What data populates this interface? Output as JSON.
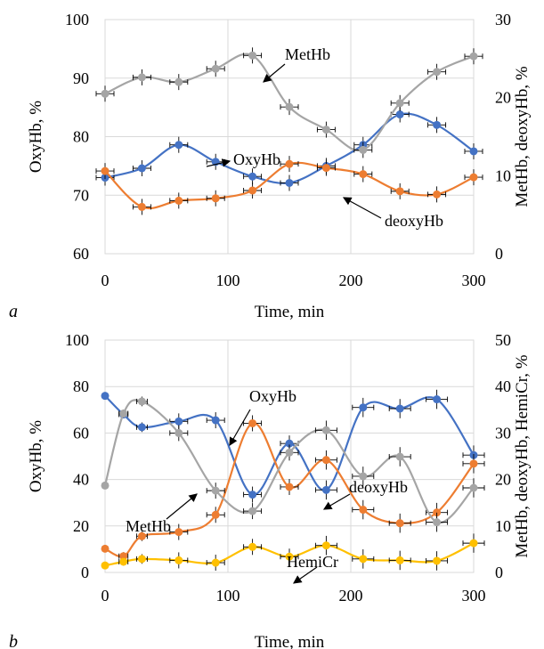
{
  "chart_data": [
    {
      "panel_label": "a",
      "type": "scatter",
      "xlabel": "Time, min",
      "ylabel": "OxyHb,  %",
      "y2label": "MetHb, deoxyHb,  %",
      "xlim": [
        0,
        300
      ],
      "ylim": [
        60,
        100
      ],
      "y2lim": [
        0,
        30
      ],
      "x_ticks": [
        "0",
        "100",
        "200",
        "300"
      ],
      "y_ticks": [
        "60",
        "70",
        "80",
        "90",
        "100"
      ],
      "y2_ticks": [
        "0",
        "10",
        "20",
        "30"
      ],
      "grid": true,
      "series": [
        {
          "name": "OxyHb",
          "axis": "left",
          "color": "#4472C4",
          "x": [
            0,
            30,
            60,
            90,
            120,
            150,
            180,
            210,
            240,
            270,
            300
          ],
          "y": [
            73.0,
            74.6,
            78.6,
            75.7,
            73.2,
            72.1,
            75.0,
            78.6,
            83.8,
            82.0,
            77.5
          ],
          "annotation": "OxyHb"
        },
        {
          "name": "deoxyHb",
          "axis": "right",
          "color": "#ED7D31",
          "x": [
            0,
            30,
            60,
            90,
            120,
            150,
            180,
            210,
            240,
            270,
            300
          ],
          "y": [
            10.6,
            6.0,
            6.8,
            7.1,
            8.1,
            11.5,
            11.0,
            10.2,
            8.0,
            7.6,
            9.8
          ],
          "annotation": "deoxyHb"
        },
        {
          "name": "MetHb",
          "axis": "right",
          "color": "#A5A5A5",
          "x": [
            0,
            30,
            60,
            90,
            120,
            150,
            180,
            210,
            240,
            270,
            300
          ],
          "y": [
            20.5,
            22.6,
            22.0,
            23.7,
            25.4,
            18.8,
            15.9,
            13.3,
            19.3,
            23.3,
            25.3
          ],
          "annotation": "MetHb"
        }
      ]
    },
    {
      "panel_label": "b",
      "type": "scatter",
      "xlabel": "Time, min",
      "ylabel": "OxyHb,  %",
      "y2label": "MetHb, deoxyHb, HemiCr,  %",
      "xlim": [
        0,
        300
      ],
      "ylim": [
        0,
        100
      ],
      "y2lim": [
        0,
        50
      ],
      "x_ticks": [
        "0",
        "100",
        "200",
        "300"
      ],
      "y_ticks": [
        "0",
        "20",
        "40",
        "60",
        "80",
        "100"
      ],
      "y2_ticks": [
        "0",
        "10",
        "20",
        "30",
        "40",
        "50"
      ],
      "grid": true,
      "series": [
        {
          "name": "OxyHb",
          "axis": "left",
          "color": "#4472C4",
          "x": [
            0,
            15,
            30,
            60,
            90,
            120,
            150,
            180,
            210,
            240,
            270,
            300
          ],
          "y": [
            76.0,
            68.0,
            62.5,
            65.0,
            65.5,
            33.5,
            55.5,
            35.5,
            71.0,
            70.5,
            74.5,
            50.5
          ],
          "annotation": "OxyHb"
        },
        {
          "name": "deoxyHb",
          "axis": "right",
          "color": "#ED7D31",
          "x": [
            0,
            15,
            30,
            60,
            90,
            120,
            150,
            180,
            210,
            240,
            270,
            300
          ],
          "y": [
            5.1,
            3.5,
            7.8,
            8.7,
            12.4,
            32.1,
            18.4,
            24.2,
            13.5,
            10.6,
            12.9,
            23.4
          ],
          "annotation": "deoxyHb"
        },
        {
          "name": "MetHb",
          "axis": "right",
          "color": "#A5A5A5",
          "x": [
            0,
            15,
            30,
            60,
            90,
            120,
            150,
            180,
            210,
            240,
            270,
            300
          ],
          "y": [
            18.7,
            34.2,
            36.8,
            30.0,
            17.6,
            13.2,
            25.8,
            30.6,
            20.7,
            24.9,
            10.8,
            18.2
          ],
          "annotation": "MetHb"
        },
        {
          "name": "HemiCr",
          "axis": "right",
          "color": "#FFC000",
          "x": [
            0,
            15,
            30,
            60,
            90,
            120,
            150,
            180,
            210,
            240,
            270,
            300
          ],
          "y": [
            1.5,
            2.3,
            2.9,
            2.6,
            2.1,
            5.5,
            3.4,
            5.8,
            2.9,
            2.6,
            2.5,
            6.3
          ],
          "annotation": "HemiCr"
        }
      ]
    }
  ]
}
